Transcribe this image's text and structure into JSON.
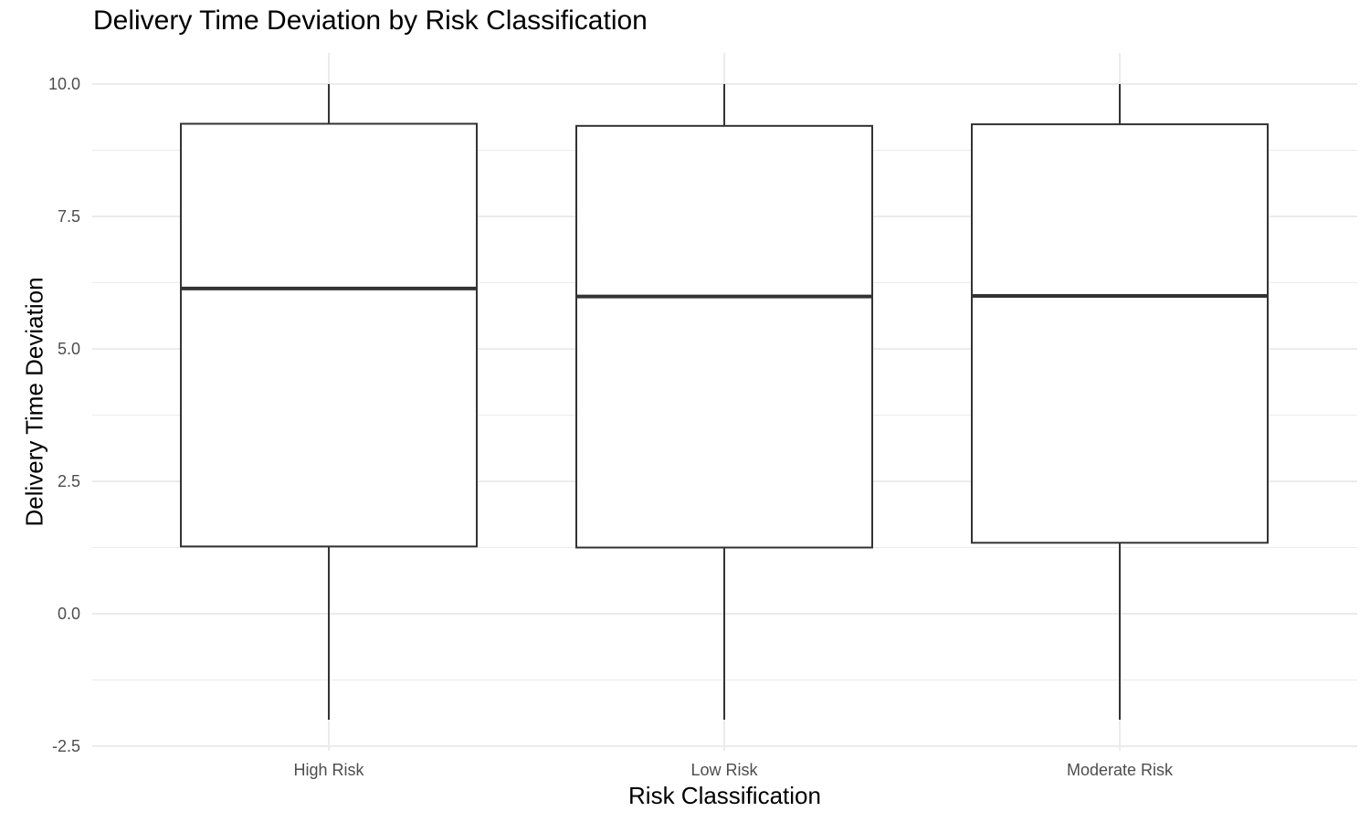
{
  "chart_data": {
    "type": "boxplot",
    "title": "Delivery Time Deviation by Risk Classification",
    "xlabel": "Risk Classification",
    "ylabel": "Delivery Time Deviation",
    "ylim": [
      -2.5,
      10.0
    ],
    "yticks": [
      -2.5,
      0.0,
      2.5,
      5.0,
      7.5,
      10.0
    ],
    "ytick_labels": [
      "-2.5",
      "0.0",
      "2.5",
      "5.0",
      "7.5",
      "10.0"
    ],
    "categories": [
      "High Risk",
      "Low Risk",
      "Moderate Risk"
    ],
    "boxes": [
      {
        "category": "High Risk",
        "min": -2.0,
        "q1": 1.27,
        "median": 6.14,
        "q3": 9.25,
        "max": 10.0
      },
      {
        "category": "Low Risk",
        "min": -2.0,
        "q1": 1.25,
        "median": 5.99,
        "q3": 9.21,
        "max": 10.0
      },
      {
        "category": "Moderate Risk",
        "min": -2.0,
        "q1": 1.34,
        "median": 6.0,
        "q3": 9.24,
        "max": 10.0
      }
    ],
    "grid": true,
    "colors": {
      "grid": "#ebebeb",
      "box": "#333333",
      "tick_text": "#4d4d4d"
    }
  }
}
